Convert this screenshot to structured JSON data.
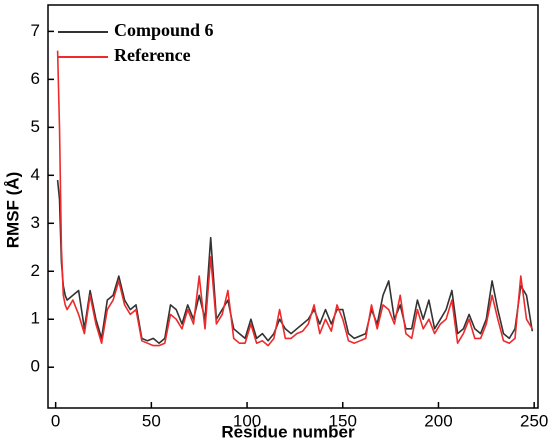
{
  "chart_data": {
    "type": "line",
    "x_label": "Residue number",
    "y_label": "RMSF (Å)",
    "x": [
      1,
      2,
      3,
      4,
      5,
      6,
      9,
      12,
      15,
      18,
      21,
      24,
      27,
      30,
      33,
      36,
      39,
      42,
      45,
      48,
      51,
      54,
      57,
      60,
      63,
      66,
      69,
      72,
      75,
      78,
      81,
      84,
      87,
      90,
      93,
      96,
      99,
      102,
      105,
      108,
      111,
      114,
      117,
      120,
      123,
      126,
      129,
      132,
      135,
      138,
      141,
      144,
      147,
      150,
      153,
      156,
      159,
      162,
      165,
      168,
      171,
      174,
      177,
      180,
      183,
      186,
      189,
      192,
      195,
      198,
      201,
      204,
      207,
      210,
      213,
      216,
      219,
      222,
      225,
      228,
      231,
      234,
      237,
      240,
      243,
      246,
      249
    ],
    "series": [
      {
        "name": "Compound 6",
        "color": "#333333",
        "values": [
          3.9,
          3.5,
          2.2,
          1.7,
          1.5,
          1.4,
          1.5,
          1.6,
          0.8,
          1.6,
          1.0,
          0.6,
          1.4,
          1.5,
          1.9,
          1.4,
          1.2,
          1.3,
          0.6,
          0.55,
          0.6,
          0.5,
          0.6,
          1.3,
          1.2,
          0.9,
          1.3,
          1.0,
          1.5,
          1.0,
          2.7,
          1.0,
          1.2,
          1.4,
          0.8,
          0.7,
          0.6,
          1.0,
          0.6,
          0.7,
          0.55,
          0.7,
          1.0,
          0.8,
          0.7,
          0.8,
          0.9,
          1.0,
          1.2,
          0.9,
          1.2,
          0.9,
          1.2,
          1.2,
          0.7,
          0.6,
          0.65,
          0.7,
          1.2,
          0.9,
          1.5,
          1.8,
          1.0,
          1.3,
          0.8,
          0.8,
          1.4,
          1.0,
          1.4,
          0.8,
          1.0,
          1.2,
          1.6,
          0.7,
          0.8,
          1.1,
          0.8,
          0.7,
          1.0,
          1.8,
          1.2,
          0.7,
          0.6,
          0.8,
          1.7,
          1.5,
          0.75
        ]
      },
      {
        "name": "Reference",
        "color": "#ee2a2a",
        "values": [
          6.6,
          5.0,
          2.5,
          1.5,
          1.3,
          1.2,
          1.4,
          1.1,
          0.7,
          1.5,
          0.9,
          0.5,
          1.2,
          1.4,
          1.8,
          1.3,
          1.1,
          1.2,
          0.55,
          0.5,
          0.45,
          0.45,
          0.5,
          1.1,
          1.0,
          0.8,
          1.2,
          0.9,
          1.9,
          0.8,
          2.3,
          0.9,
          1.1,
          1.6,
          0.6,
          0.5,
          0.5,
          0.9,
          0.5,
          0.55,
          0.45,
          0.6,
          1.2,
          0.6,
          0.6,
          0.7,
          0.75,
          0.9,
          1.3,
          0.7,
          1.0,
          0.75,
          1.3,
          1.0,
          0.55,
          0.5,
          0.55,
          0.6,
          1.3,
          0.8,
          1.3,
          1.2,
          0.9,
          1.5,
          0.7,
          0.6,
          1.2,
          0.8,
          1.0,
          0.7,
          0.9,
          1.0,
          1.4,
          0.5,
          0.7,
          1.0,
          0.6,
          0.6,
          0.9,
          1.5,
          1.0,
          0.55,
          0.5,
          0.6,
          1.9,
          1.0,
          0.8
        ]
      }
    ],
    "xlim": [
      -4,
      252
    ],
    "ylim": [
      -0.85,
      7.55
    ],
    "xticks": [
      0,
      50,
      100,
      150,
      200,
      250
    ],
    "yticks": [
      0,
      1,
      2,
      3,
      4,
      5,
      6,
      7
    ],
    "legend": "top-left",
    "grid": false
  }
}
